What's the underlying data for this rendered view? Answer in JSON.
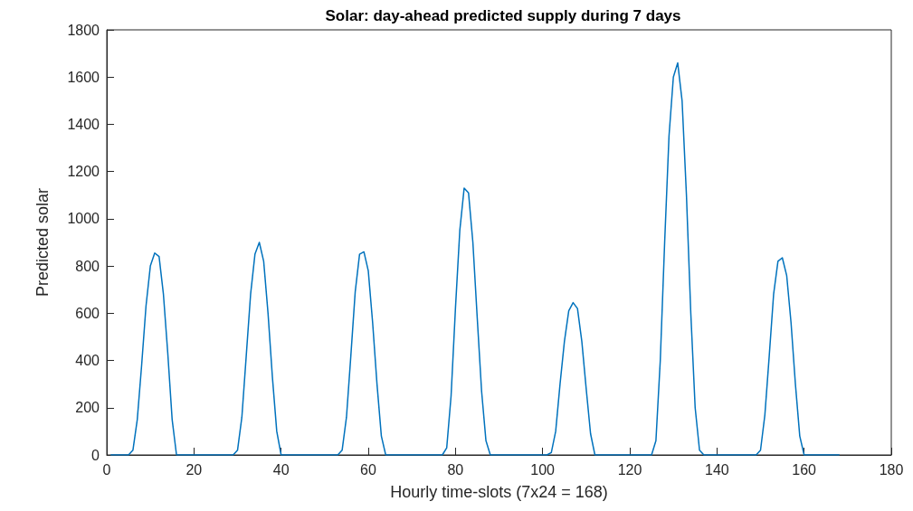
{
  "chart_data": {
    "type": "line",
    "title": "Solar: day-ahead predicted supply during 7 days",
    "xlabel": "Hourly time-slots (7x24 = 168)",
    "ylabel": "Predicted solar",
    "x": [
      1,
      5,
      6,
      7,
      8,
      9,
      10,
      11,
      12,
      13,
      14,
      15,
      16,
      29,
      30,
      31,
      32,
      33,
      34,
      35,
      36,
      37,
      38,
      39,
      40,
      53,
      54,
      55,
      56,
      57,
      58,
      59,
      60,
      61,
      62,
      63,
      64,
      77,
      78,
      79,
      80,
      81,
      82,
      83,
      84,
      85,
      86,
      87,
      88,
      101,
      102,
      103,
      104,
      105,
      106,
      107,
      108,
      109,
      110,
      111,
      112,
      125,
      126,
      127,
      128,
      129,
      130,
      131,
      132,
      133,
      134,
      135,
      136,
      137,
      149,
      150,
      151,
      152,
      153,
      154,
      155,
      156,
      157,
      158,
      159,
      160,
      168
    ],
    "series": [
      {
        "color": "#0072bd",
        "values": [
          0,
          0,
          20,
          150,
          380,
          630,
          800,
          855,
          840,
          680,
          430,
          150,
          0,
          0,
          20,
          160,
          420,
          680,
          850,
          900,
          820,
          600,
          330,
          100,
          0,
          0,
          20,
          160,
          420,
          690,
          850,
          860,
          780,
          560,
          300,
          80,
          0,
          0,
          30,
          250,
          620,
          950,
          1130,
          1110,
          900,
          580,
          270,
          60,
          0,
          0,
          10,
          100,
          300,
          480,
          610,
          645,
          620,
          480,
          280,
          90,
          0,
          0,
          60,
          400,
          900,
          1350,
          1600,
          1660,
          1500,
          1100,
          600,
          200,
          20,
          0,
          0,
          20,
          170,
          420,
          680,
          820,
          835,
          760,
          560,
          300,
          80,
          0,
          0
        ]
      }
    ],
    "xlim": [
      0,
      180
    ],
    "xticks": [
      0,
      20,
      40,
      60,
      80,
      100,
      120,
      140,
      160,
      180
    ],
    "ylim": [
      0,
      1800
    ],
    "yticks": [
      0,
      200,
      400,
      600,
      800,
      1000,
      1200,
      1400,
      1600,
      1800
    ],
    "grid": false,
    "marker": "none",
    "line_style": "solid"
  }
}
